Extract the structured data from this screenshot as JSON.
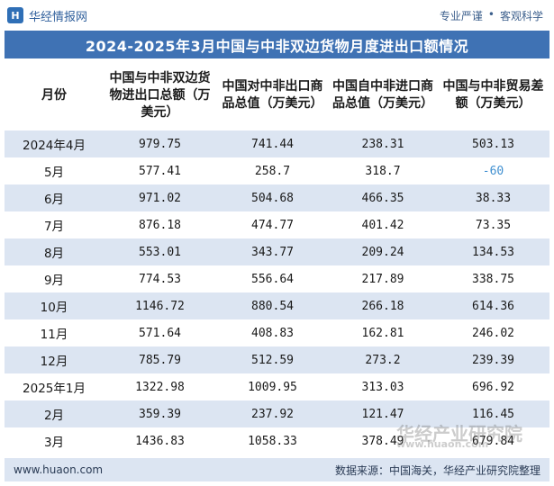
{
  "header": {
    "brand": "华经情报网",
    "tagline_left": "专业严谨",
    "tagline_sep": "•",
    "tagline_right": "客观科学"
  },
  "title": "2024-2025年3月中国与中非双边货物月度进出口额情况",
  "table": {
    "columns": [
      "月份",
      "中国与中非双边货物进出口总额（万美元）",
      "中国对中非出口商品总值（万美元）",
      "中国自中非进口商品总值（万美元）",
      "中国与中非贸易差额（万美元）"
    ],
    "rows": [
      [
        "2024年4月",
        "979.75",
        "741.44",
        "238.31",
        "503.13"
      ],
      [
        "5月",
        "577.41",
        "258.7",
        "318.7",
        "-60"
      ],
      [
        "6月",
        "971.02",
        "504.68",
        "466.35",
        "38.33"
      ],
      [
        "7月",
        "876.18",
        "474.77",
        "401.42",
        "73.35"
      ],
      [
        "8月",
        "553.01",
        "343.77",
        "209.24",
        "134.53"
      ],
      [
        "9月",
        "774.53",
        "556.64",
        "217.89",
        "338.75"
      ],
      [
        "10月",
        "1146.72",
        "880.54",
        "266.18",
        "614.36"
      ],
      [
        "11月",
        "571.64",
        "408.83",
        "162.81",
        "246.02"
      ],
      [
        "12月",
        "785.79",
        "512.59",
        "273.2",
        "239.39"
      ],
      [
        "2025年1月",
        "1322.98",
        "1009.95",
        "313.03",
        "696.92"
      ],
      [
        "2月",
        "359.39",
        "237.92",
        "121.47",
        "116.45"
      ],
      [
        "3月",
        "1436.83",
        "1058.33",
        "378.49",
        "679.84"
      ]
    ]
  },
  "watermark": {
    "text": "华经产业研究院",
    "url": "www.huaon.com"
  },
  "footer": {
    "url": "www.huaon.com",
    "source": "数据来源：中国海关，华经产业研究院整理"
  },
  "colors": {
    "title_bg": "#3f72b4",
    "stripe": "#dce5f2",
    "negative": "#3f8fd0"
  }
}
